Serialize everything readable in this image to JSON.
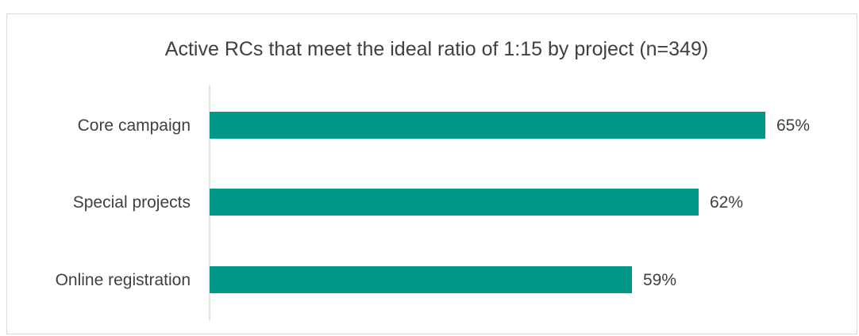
{
  "chart_data": {
    "type": "bar",
    "orientation": "horizontal",
    "title": "Active RCs that meet the ideal ratio of 1:15 by project (n=349)",
    "categories": [
      "Core campaign",
      "Special projects",
      "Online registration"
    ],
    "values": [
      65,
      62,
      59
    ],
    "value_labels": [
      "65%",
      "62%",
      "59%"
    ],
    "xlabel": "",
    "ylabel": "",
    "xlim": [
      40,
      70
    ],
    "grid": false,
    "legend": "none",
    "bar_color": "#009688"
  }
}
